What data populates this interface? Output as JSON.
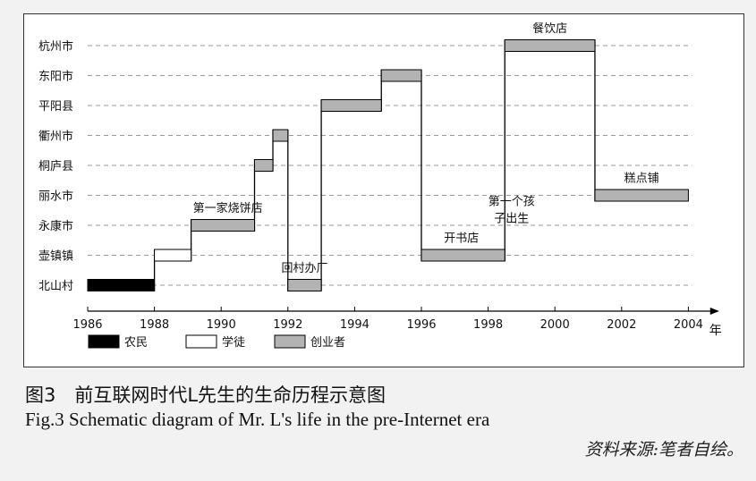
{
  "chart_data": {
    "type": "gantt",
    "xlabel": "年",
    "xlim": [
      1986,
      2004.6
    ],
    "xticks": [
      "1986",
      "1988",
      "1990",
      "1992",
      "1994",
      "1996",
      "1998",
      "2000",
      "2002",
      "2004"
    ],
    "categories": [
      "北山村",
      "壶镇镇",
      "永康市",
      "丽水市",
      "桐庐县",
      "衢州市",
      "平阳县",
      "东阳市",
      "杭州市"
    ],
    "grid": "horizontal-dashed",
    "legend": [
      {
        "name": "农民",
        "style": "black"
      },
      {
        "name": "学徒",
        "style": "white"
      },
      {
        "name": "创业者",
        "style": "gray"
      }
    ],
    "segments": [
      {
        "place": "北山村",
        "start": 1986,
        "end": 1988,
        "role": "black"
      },
      {
        "place": "壶镇镇",
        "start": 1988,
        "end": 1989.1,
        "role": "white"
      },
      {
        "place": "永康市",
        "start": 1989.1,
        "end": 1991,
        "role": "gray"
      },
      {
        "place": "桐庐县",
        "start": 1991,
        "end": 1991.55,
        "role": "gray"
      },
      {
        "place": "衢州市",
        "start": 1991.55,
        "end": 1992,
        "role": "gray"
      },
      {
        "place": "北山村",
        "start": 1992,
        "end": 1993,
        "role": "gray"
      },
      {
        "place": "平阳县",
        "start": 1993,
        "end": 1994.8,
        "role": "gray"
      },
      {
        "place": "东阳市",
        "start": 1994.8,
        "end": 1996,
        "role": "gray"
      },
      {
        "place": "壶镇镇",
        "start": 1996,
        "end": 1998.5,
        "role": "gray"
      },
      {
        "place": "杭州市",
        "start": 1998.5,
        "end": 2001.2,
        "role": "gray"
      },
      {
        "place": "丽水市",
        "start": 2001.2,
        "end": 2004,
        "role": "gray"
      }
    ],
    "annotations": [
      {
        "text": "第一家烧饼店",
        "x": 1990.2,
        "place": "永康市"
      },
      {
        "text": "回村办厂",
        "x": 1992.5,
        "place": "北山村"
      },
      {
        "text": "开书店",
        "x": 1997.2,
        "place": "壶镇镇"
      },
      {
        "text": "第一个孩",
        "x": 1998.7,
        "place": "丽水市",
        "line": 1
      },
      {
        "text": "子出生",
        "x": 1998.7,
        "place": "丽水市",
        "line": 2
      },
      {
        "text": "餐饮店",
        "x": 1999.85,
        "place": "杭州市"
      },
      {
        "text": "糕点铺",
        "x": 2002.6,
        "place": "丽水市"
      }
    ]
  },
  "caption": {
    "zh": "图3　前互联网时代L先生的生命历程示意图",
    "en": "Fig.3  Schematic diagram of Mr. L's life in the pre-Internet era",
    "source": "资料来源:笔者自绘。"
  },
  "colors": {
    "black": "#000000",
    "white": "#ffffff",
    "gray": "#b3b3b3",
    "grid": "#9a9a9a"
  }
}
